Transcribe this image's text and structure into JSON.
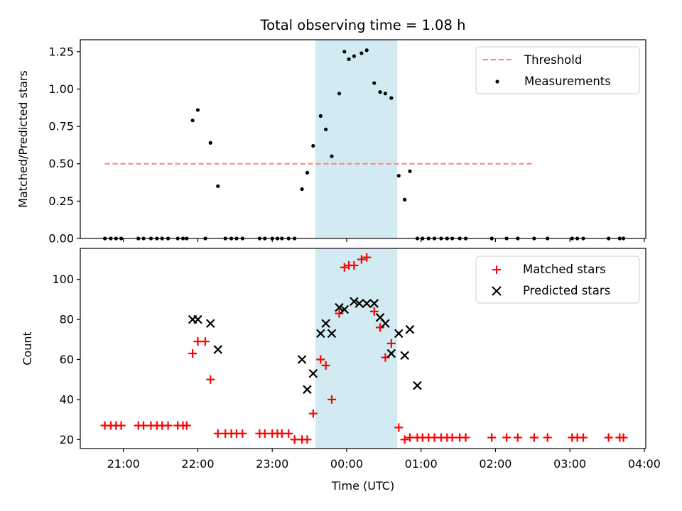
{
  "chart_data": [
    {
      "type": "scatter",
      "title": "Total observing time = 1.08 h",
      "ylabel": "Matched/Predicted stars",
      "xlabel": "",
      "xlim": [
        20.42,
        28.02
      ],
      "ylim": [
        0,
        1.33
      ],
      "yticks": [
        "0.00",
        "0.25",
        "0.50",
        "0.75",
        "1.00",
        "1.25"
      ],
      "ytick_values": [
        0,
        0.25,
        0.5,
        0.75,
        1.0,
        1.25
      ],
      "xtick_values": [
        21,
        22,
        23,
        24,
        25,
        26,
        27,
        28
      ],
      "highlight_span": [
        23.58,
        24.68
      ],
      "highlight_color": "#add8e6",
      "threshold": {
        "label": "Threshold",
        "value": 0.5,
        "x_range": [
          20.75,
          26.5
        ],
        "color": "#ff7f7f"
      },
      "legend": {
        "placement": "top-right",
        "entries": [
          "Threshold",
          "Measurements"
        ]
      },
      "series": [
        {
          "name": "Measurements",
          "color": "#000000",
          "x": [
            20.75,
            20.83,
            20.9,
            20.97,
            21.2,
            21.27,
            21.37,
            21.45,
            21.52,
            21.6,
            21.73,
            21.8,
            21.85,
            21.93,
            22.0,
            22.1,
            22.17,
            22.27,
            22.37,
            22.45,
            22.52,
            22.6,
            22.83,
            22.9,
            23.0,
            23.07,
            23.13,
            23.22,
            23.3,
            23.4,
            23.47,
            23.55,
            23.65,
            23.72,
            23.8,
            23.9,
            23.97,
            24.03,
            24.1,
            24.2,
            24.27,
            24.37,
            24.45,
            24.52,
            24.6,
            24.7,
            24.78,
            24.85,
            24.95,
            25.02,
            25.1,
            25.18,
            25.27,
            25.35,
            25.42,
            25.52,
            25.6,
            25.95,
            26.15,
            26.3,
            26.52,
            26.7,
            27.03,
            27.1,
            27.18,
            27.52,
            27.67,
            27.72
          ],
          "y": [
            0,
            0,
            0,
            0,
            0,
            0,
            0,
            0,
            0,
            0,
            0,
            0,
            0,
            0.79,
            0.86,
            0,
            0.64,
            0.35,
            0,
            0,
            0,
            0,
            0,
            0,
            0,
            0,
            0,
            0,
            0,
            0.33,
            0.44,
            0.62,
            0.82,
            0.73,
            0.55,
            0.97,
            1.25,
            1.2,
            1.22,
            1.24,
            1.26,
            1.04,
            0.98,
            0.97,
            0.94,
            0.42,
            0.26,
            0.45,
            0,
            0,
            0,
            0,
            0,
            0,
            0,
            0,
            0,
            0,
            0,
            0,
            0,
            0,
            0,
            0,
            0,
            0,
            0,
            0
          ]
        }
      ]
    },
    {
      "type": "scatter",
      "title": "",
      "xlabel": "Time (UTC)",
      "ylabel": "Count",
      "xlim": [
        20.42,
        28.02
      ],
      "ylim": [
        15.5,
        115.5
      ],
      "yticks": [
        "20",
        "40",
        "60",
        "80",
        "100"
      ],
      "ytick_values": [
        20,
        40,
        60,
        80,
        100
      ],
      "xticks": [
        "21:00",
        "22:00",
        "23:00",
        "00:00",
        "01:00",
        "02:00",
        "03:00",
        "04:00"
      ],
      "xtick_values": [
        21,
        22,
        23,
        24,
        25,
        26,
        27,
        28
      ],
      "highlight_span": [
        23.58,
        24.68
      ],
      "highlight_color": "#add8e6",
      "legend": {
        "placement": "top-right",
        "entries": [
          "Matched stars",
          "Predicted stars"
        ]
      },
      "series": [
        {
          "name": "Matched stars",
          "marker": "plus",
          "color": "#ff0000",
          "x": [
            20.75,
            20.83,
            20.9,
            20.97,
            21.2,
            21.27,
            21.37,
            21.45,
            21.52,
            21.6,
            21.73,
            21.8,
            21.85,
            21.93,
            22.0,
            22.1,
            22.17,
            22.27,
            22.37,
            22.45,
            22.52,
            22.6,
            22.83,
            22.9,
            23.0,
            23.07,
            23.13,
            23.22,
            23.3,
            23.4,
            23.47,
            23.55,
            23.65,
            23.72,
            23.8,
            23.9,
            23.97,
            24.03,
            24.1,
            24.2,
            24.27,
            24.37,
            24.45,
            24.52,
            24.6,
            24.7,
            24.78,
            24.85,
            24.95,
            25.02,
            25.1,
            25.18,
            25.27,
            25.35,
            25.42,
            25.52,
            25.6,
            25.95,
            26.15,
            26.3,
            26.52,
            26.7,
            27.03,
            27.1,
            27.18,
            27.52,
            27.67,
            27.72
          ],
          "y": [
            27,
            27,
            27,
            27,
            27,
            27,
            27,
            27,
            27,
            27,
            27,
            27,
            27,
            63,
            69,
            69,
            50,
            23,
            23,
            23,
            23,
            23,
            23,
            23,
            23,
            23,
            23,
            23,
            20,
            20,
            20,
            33,
            60,
            57,
            40,
            83,
            106,
            107,
            107,
            110,
            111,
            84,
            76,
            61,
            68,
            26,
            20,
            21,
            21,
            21,
            21,
            21,
            21,
            21,
            21,
            21,
            21,
            21,
            21,
            21,
            21,
            21,
            21,
            21,
            21,
            21,
            21,
            21
          ]
        },
        {
          "name": "Predicted stars",
          "marker": "x",
          "color": "#000000",
          "x": [
            21.93,
            22.0,
            22.17,
            22.27,
            23.4,
            23.47,
            23.55,
            23.65,
            23.72,
            23.8,
            23.9,
            23.97,
            24.1,
            24.17,
            24.27,
            24.37,
            24.45,
            24.52,
            24.6,
            24.7,
            24.78,
            24.85,
            24.95
          ],
          "y": [
            80,
            80,
            78,
            65,
            60,
            45,
            53,
            73,
            78,
            73,
            86,
            85,
            89,
            88,
            88,
            88,
            81,
            78,
            63,
            73,
            62,
            75,
            47
          ]
        }
      ]
    }
  ]
}
